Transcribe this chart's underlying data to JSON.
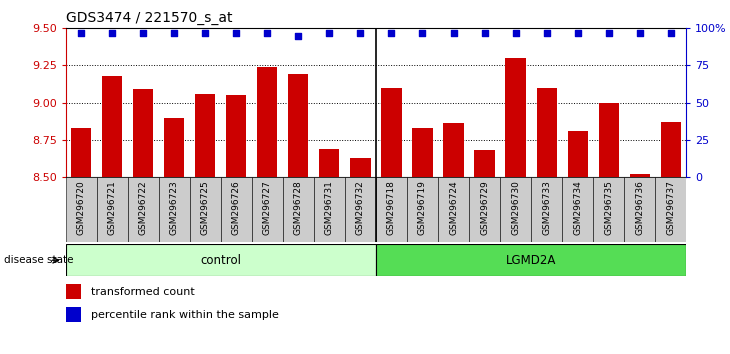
{
  "title": "GDS3474 / 221570_s_at",
  "samples": [
    "GSM296720",
    "GSM296721",
    "GSM296722",
    "GSM296723",
    "GSM296725",
    "GSM296726",
    "GSM296727",
    "GSM296728",
    "GSM296731",
    "GSM296732",
    "GSM296718",
    "GSM296719",
    "GSM296724",
    "GSM296729",
    "GSM296730",
    "GSM296733",
    "GSM296734",
    "GSM296735",
    "GSM296736",
    "GSM296737"
  ],
  "bar_values": [
    8.83,
    9.18,
    9.09,
    8.9,
    9.06,
    9.05,
    9.24,
    9.19,
    8.69,
    8.63,
    9.1,
    8.83,
    8.86,
    8.68,
    9.3,
    9.1,
    8.81,
    9.0,
    8.52,
    8.87
  ],
  "percentile_values": [
    97,
    97,
    97,
    97,
    97,
    97,
    97,
    95,
    97,
    97,
    97,
    97,
    97,
    97,
    97,
    97,
    97,
    97,
    97,
    97
  ],
  "control_count": 10,
  "ylim_left": [
    8.5,
    9.5
  ],
  "ylim_right": [
    0,
    100
  ],
  "yticks_left": [
    8.5,
    8.75,
    9.0,
    9.25,
    9.5
  ],
  "yticks_right": [
    0,
    25,
    50,
    75,
    100
  ],
  "bar_color": "#cc0000",
  "dot_color": "#0000cc",
  "control_label": "control",
  "lgmd_label": "LGMD2A",
  "control_bg": "#ccffcc",
  "lgmd_bg": "#55dd55",
  "left_axis_color": "#cc0000",
  "right_axis_color": "#0000cc",
  "legend_bar_label": "transformed count",
  "legend_dot_label": "percentile rank within the sample",
  "disease_state_label": "disease state",
  "grid_yticks": [
    8.75,
    9.0,
    9.25
  ],
  "bar_width": 0.65,
  "tick_bg_color": "#cccccc"
}
